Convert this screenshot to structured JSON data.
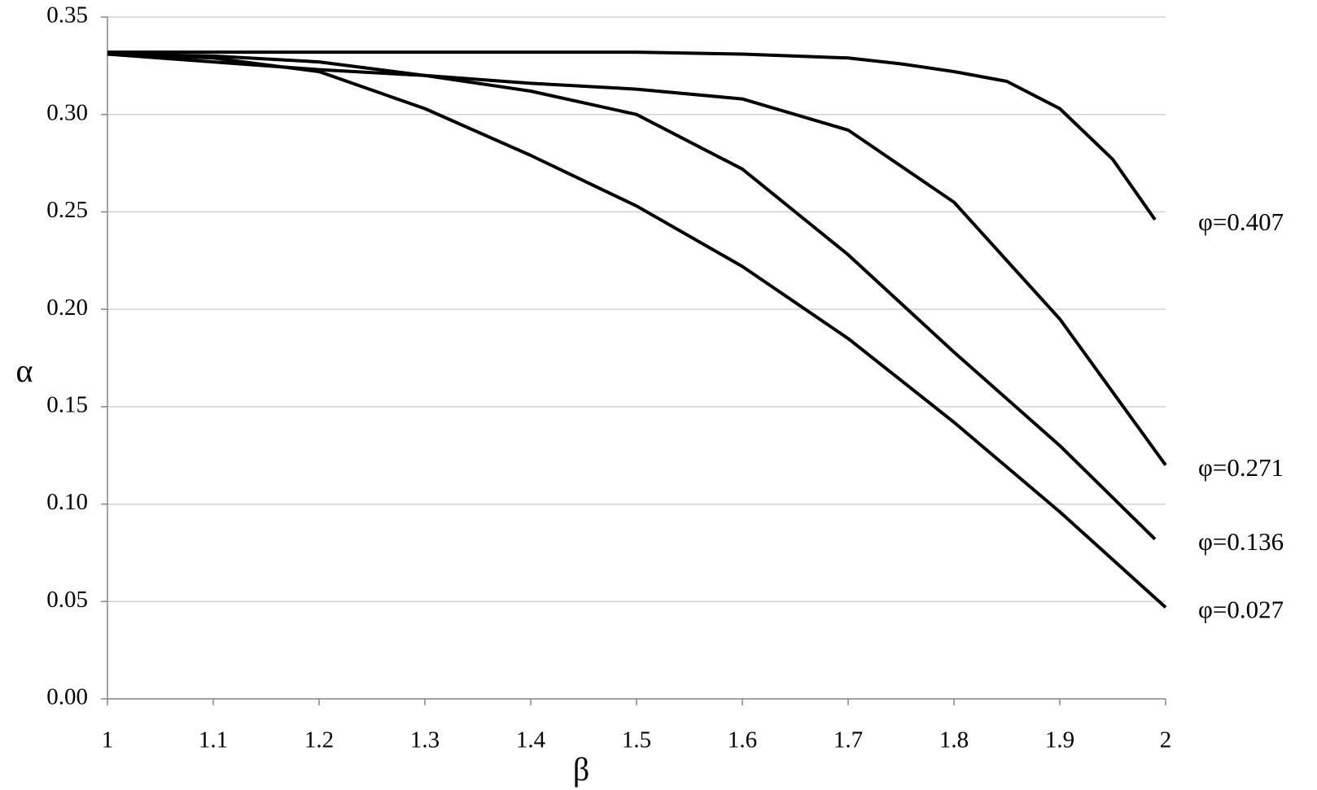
{
  "chart_data": {
    "type": "line",
    "x_label": "β",
    "y_label": "α",
    "xlim": [
      1,
      2
    ],
    "xticks": [
      1,
      1.1,
      1.2,
      1.3,
      1.4,
      1.5,
      1.6,
      1.7,
      1.8,
      1.9,
      2
    ],
    "ylim": [
      0,
      0.35
    ],
    "yticks": [
      {
        "value": 0,
        "label": "0.00"
      },
      {
        "value": 0.05,
        "label": "0.05"
      },
      {
        "value": 0.1,
        "label": "0.10"
      },
      {
        "value": 0.15,
        "label": "0.15"
      },
      {
        "value": 0.2,
        "label": "0.20"
      },
      {
        "value": 0.25,
        "label": "0.25"
      },
      {
        "value": 0.3,
        "label": "0.30"
      },
      {
        "value": 0.35,
        "label": "0.35"
      }
    ],
    "grid": true,
    "series": [
      {
        "name": "φ=0.407",
        "color": "#000000",
        "x": [
          1,
          1.1,
          1.2,
          1.3,
          1.4,
          1.5,
          1.6,
          1.7,
          1.75,
          1.8,
          1.85,
          1.9,
          1.95,
          1.99
        ],
        "values": [
          0.332,
          0.332,
          0.332,
          0.332,
          0.332,
          0.332,
          0.331,
          0.329,
          0.326,
          0.322,
          0.317,
          0.303,
          0.277,
          0.246
        ]
      },
      {
        "name": "φ=0.271",
        "color": "#000000",
        "x": [
          1,
          1.1,
          1.2,
          1.3,
          1.4,
          1.5,
          1.6,
          1.7,
          1.8,
          1.9,
          2
        ],
        "values": [
          0.331,
          0.327,
          0.323,
          0.32,
          0.316,
          0.313,
          0.308,
          0.292,
          0.255,
          0.195,
          0.12
        ]
      },
      {
        "name": "φ=0.136",
        "color": "#000000",
        "x": [
          1,
          1.1,
          1.2,
          1.3,
          1.4,
          1.5,
          1.6,
          1.7,
          1.8,
          1.9,
          1.99
        ],
        "values": [
          0.331,
          0.33,
          0.327,
          0.32,
          0.312,
          0.3,
          0.272,
          0.228,
          0.178,
          0.13,
          0.082
        ]
      },
      {
        "name": "φ=0.027",
        "color": "#000000",
        "x": [
          1,
          1.1,
          1.2,
          1.3,
          1.4,
          1.5,
          1.6,
          1.7,
          1.8,
          1.9,
          2
        ],
        "values": [
          0.331,
          0.329,
          0.322,
          0.303,
          0.279,
          0.253,
          0.222,
          0.185,
          0.142,
          0.096,
          0.047
        ]
      }
    ]
  }
}
